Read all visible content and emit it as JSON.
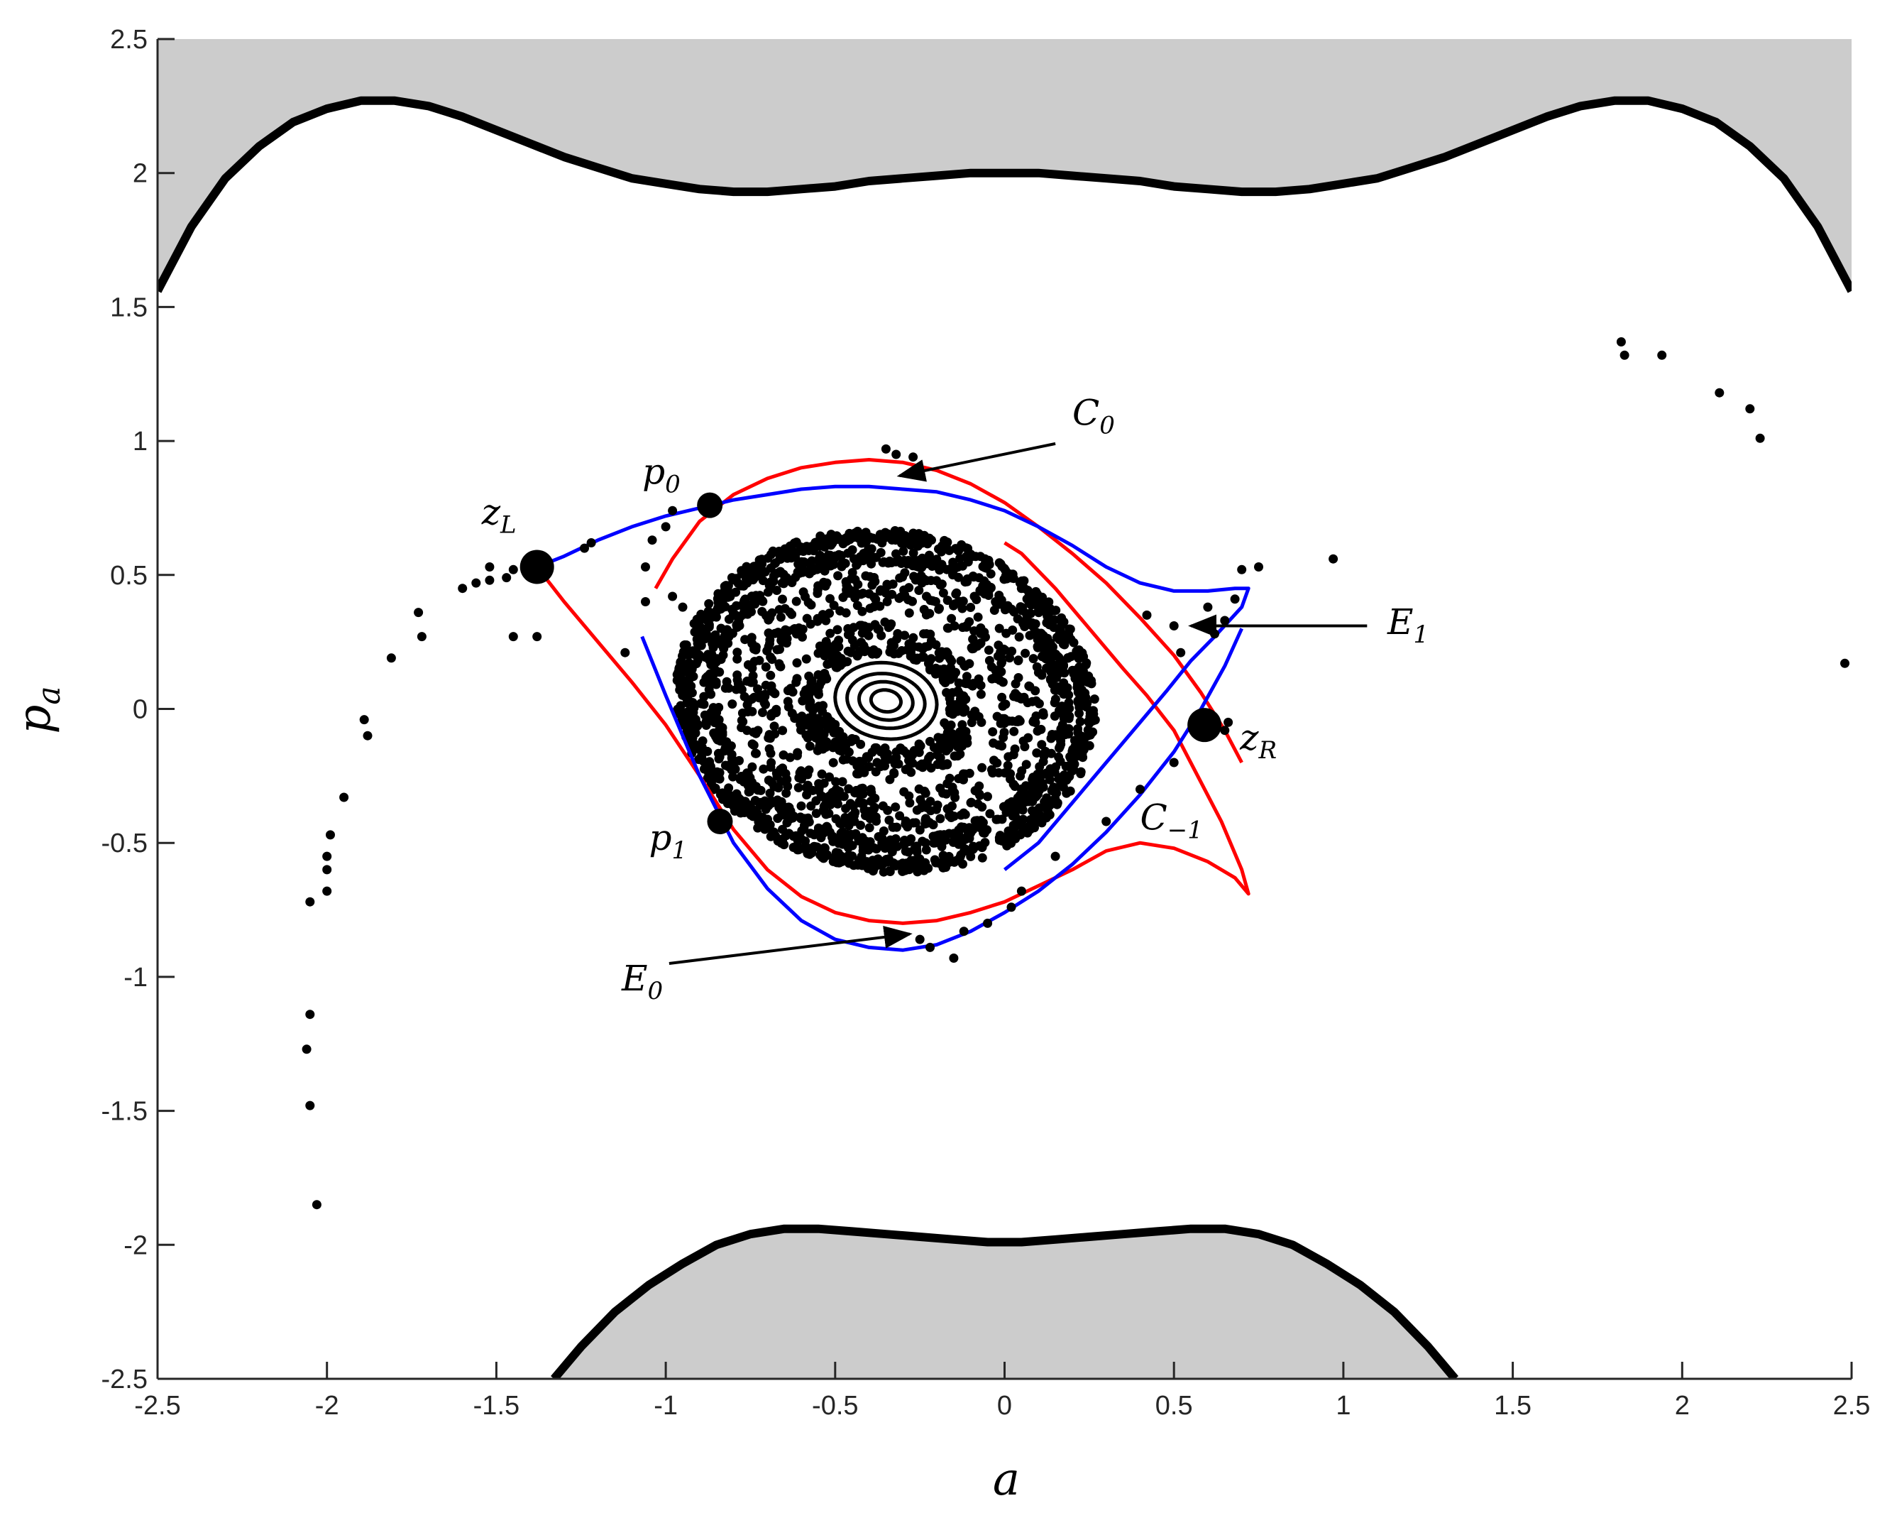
{
  "chart_data": {
    "type": "scatter",
    "xlabel": "a",
    "ylabel": "p",
    "ylabel_sub": "a",
    "xlim": [
      -2.5,
      2.5
    ],
    "ylim": [
      -2.5,
      2.5
    ],
    "xticks": [
      -2.5,
      -2,
      -1.5,
      -1,
      -0.5,
      0,
      0.5,
      1,
      1.5,
      2,
      2.5
    ],
    "yticks": [
      -2.5,
      -2,
      -1.5,
      -1,
      -0.5,
      0,
      0.5,
      1,
      1.5,
      2,
      2.5
    ],
    "xtick_labels": [
      "-2.5",
      "-2",
      "-1.5",
      "-1",
      "-0.5",
      "0",
      "0.5",
      "1",
      "1.5",
      "2",
      "2.5"
    ],
    "ytick_labels": [
      "-2.5",
      "-2",
      "-1.5",
      "-1",
      "-0.5",
      "0",
      "0.5",
      "1",
      "1.5",
      "2",
      "2.5"
    ],
    "grid": false,
    "colors": {
      "forbidden_fill": "#cccccc",
      "boundary": "#000000",
      "red_curve": "#ff0000",
      "blue_curve": "#0000ff",
      "points": "#000000"
    },
    "boundary_top": [
      [
        -2.5,
        1.56
      ],
      [
        -2.4,
        1.8
      ],
      [
        -2.3,
        1.98
      ],
      [
        -2.2,
        2.1
      ],
      [
        -2.1,
        2.19
      ],
      [
        -2.0,
        2.24
      ],
      [
        -1.9,
        2.27
      ],
      [
        -1.8,
        2.27
      ],
      [
        -1.7,
        2.25
      ],
      [
        -1.6,
        2.21
      ],
      [
        -1.5,
        2.16
      ],
      [
        -1.4,
        2.11
      ],
      [
        -1.3,
        2.06
      ],
      [
        -1.2,
        2.02
      ],
      [
        -1.1,
        1.98
      ],
      [
        -1.0,
        1.96
      ],
      [
        -0.9,
        1.94
      ],
      [
        -0.8,
        1.93
      ],
      [
        -0.7,
        1.93
      ],
      [
        -0.6,
        1.94
      ],
      [
        -0.5,
        1.95
      ],
      [
        -0.4,
        1.97
      ],
      [
        -0.3,
        1.98
      ],
      [
        -0.2,
        1.99
      ],
      [
        -0.1,
        2.0
      ],
      [
        0.0,
        2.0
      ],
      [
        0.1,
        2.0
      ],
      [
        0.2,
        1.99
      ],
      [
        0.3,
        1.98
      ],
      [
        0.4,
        1.97
      ],
      [
        0.5,
        1.95
      ],
      [
        0.6,
        1.94
      ],
      [
        0.7,
        1.93
      ],
      [
        0.8,
        1.93
      ],
      [
        0.9,
        1.94
      ],
      [
        1.0,
        1.96
      ],
      [
        1.1,
        1.98
      ],
      [
        1.2,
        2.02
      ],
      [
        1.3,
        2.06
      ],
      [
        1.4,
        2.11
      ],
      [
        1.5,
        2.16
      ],
      [
        1.6,
        2.21
      ],
      [
        1.7,
        2.25
      ],
      [
        1.8,
        2.27
      ],
      [
        1.9,
        2.27
      ],
      [
        2.0,
        2.24
      ],
      [
        2.1,
        2.19
      ],
      [
        2.2,
        2.1
      ],
      [
        2.3,
        1.98
      ],
      [
        2.4,
        1.8
      ],
      [
        2.5,
        1.56
      ]
    ],
    "boundary_bottom": [
      [
        -1.33,
        -2.5
      ],
      [
        -1.25,
        -2.38
      ],
      [
        -1.15,
        -2.25
      ],
      [
        -1.05,
        -2.15
      ],
      [
        -0.95,
        -2.07
      ],
      [
        -0.85,
        -2.0
      ],
      [
        -0.75,
        -1.96
      ],
      [
        -0.65,
        -1.94
      ],
      [
        -0.55,
        -1.94
      ],
      [
        -0.45,
        -1.95
      ],
      [
        -0.35,
        -1.96
      ],
      [
        -0.25,
        -1.97
      ],
      [
        -0.15,
        -1.98
      ],
      [
        -0.05,
        -1.99
      ],
      [
        0.05,
        -1.99
      ],
      [
        0.15,
        -1.98
      ],
      [
        0.25,
        -1.97
      ],
      [
        0.35,
        -1.96
      ],
      [
        0.45,
        -1.95
      ],
      [
        0.55,
        -1.94
      ],
      [
        0.65,
        -1.94
      ],
      [
        0.75,
        -1.96
      ],
      [
        0.85,
        -2.0
      ],
      [
        0.95,
        -2.07
      ],
      [
        1.05,
        -2.15
      ],
      [
        1.15,
        -2.25
      ],
      [
        1.25,
        -2.38
      ],
      [
        1.33,
        -2.5
      ]
    ],
    "red_curves": [
      [
        [
          -1.38,
          0.53
        ],
        [
          -1.3,
          0.4
        ],
        [
          -1.2,
          0.25
        ],
        [
          -1.1,
          0.1
        ],
        [
          -1.0,
          -0.06
        ],
        [
          -0.9,
          -0.25
        ],
        [
          -0.8,
          -0.45
        ],
        [
          -0.7,
          -0.6
        ],
        [
          -0.6,
          -0.7
        ],
        [
          -0.5,
          -0.76
        ],
        [
          -0.4,
          -0.79
        ],
        [
          -0.3,
          -0.8
        ],
        [
          -0.2,
          -0.79
        ],
        [
          -0.1,
          -0.76
        ],
        [
          0.0,
          -0.72
        ],
        [
          0.1,
          -0.66
        ],
        [
          0.2,
          -0.6
        ],
        [
          0.3,
          -0.53
        ],
        [
          0.4,
          -0.5
        ],
        [
          0.5,
          -0.52
        ],
        [
          0.6,
          -0.57
        ],
        [
          0.68,
          -0.63
        ],
        [
          0.72,
          -0.69
        ],
        [
          0.7,
          -0.6
        ],
        [
          0.64,
          -0.42
        ],
        [
          0.57,
          -0.25
        ],
        [
          0.5,
          -0.08
        ],
        [
          0.42,
          0.05
        ],
        [
          0.35,
          0.15
        ],
        [
          0.25,
          0.3
        ],
        [
          0.15,
          0.45
        ],
        [
          0.05,
          0.58
        ],
        [
          0.0,
          0.62
        ]
      ],
      [
        [
          -1.03,
          0.45
        ],
        [
          -0.98,
          0.56
        ],
        [
          -0.9,
          0.7
        ],
        [
          -0.8,
          0.8
        ],
        [
          -0.7,
          0.86
        ],
        [
          -0.6,
          0.9
        ],
        [
          -0.5,
          0.92
        ],
        [
          -0.4,
          0.93
        ],
        [
          -0.3,
          0.92
        ],
        [
          -0.2,
          0.89
        ],
        [
          -0.1,
          0.84
        ],
        [
          0.0,
          0.77
        ],
        [
          0.1,
          0.68
        ],
        [
          0.2,
          0.58
        ],
        [
          0.3,
          0.47
        ],
        [
          0.4,
          0.34
        ],
        [
          0.5,
          0.2
        ],
        [
          0.58,
          0.06
        ],
        [
          0.65,
          -0.08
        ],
        [
          0.7,
          -0.2
        ]
      ]
    ],
    "blue_curves": [
      [
        [
          -1.38,
          0.53
        ],
        [
          -1.3,
          0.57
        ],
        [
          -1.2,
          0.63
        ],
        [
          -1.1,
          0.68
        ],
        [
          -1.0,
          0.72
        ],
        [
          -0.9,
          0.75
        ],
        [
          -0.8,
          0.78
        ],
        [
          -0.7,
          0.8
        ],
        [
          -0.6,
          0.82
        ],
        [
          -0.5,
          0.83
        ],
        [
          -0.4,
          0.83
        ],
        [
          -0.3,
          0.82
        ],
        [
          -0.2,
          0.81
        ],
        [
          -0.1,
          0.78
        ],
        [
          0.0,
          0.74
        ],
        [
          0.1,
          0.68
        ],
        [
          0.2,
          0.61
        ],
        [
          0.3,
          0.53
        ],
        [
          0.4,
          0.47
        ],
        [
          0.5,
          0.44
        ],
        [
          0.6,
          0.44
        ],
        [
          0.68,
          0.45
        ],
        [
          0.72,
          0.45
        ],
        [
          0.7,
          0.38
        ],
        [
          0.62,
          0.27
        ],
        [
          0.55,
          0.18
        ],
        [
          0.48,
          0.07
        ],
        [
          0.4,
          -0.05
        ],
        [
          0.3,
          -0.2
        ],
        [
          0.2,
          -0.35
        ],
        [
          0.1,
          -0.5
        ],
        [
          0.0,
          -0.6
        ]
      ],
      [
        [
          -1.07,
          0.27
        ],
        [
          -1.0,
          0.05
        ],
        [
          -0.9,
          -0.25
        ],
        [
          -0.8,
          -0.5
        ],
        [
          -0.7,
          -0.67
        ],
        [
          -0.6,
          -0.79
        ],
        [
          -0.5,
          -0.86
        ],
        [
          -0.4,
          -0.89
        ],
        [
          -0.3,
          -0.9
        ],
        [
          -0.2,
          -0.88
        ],
        [
          -0.1,
          -0.83
        ],
        [
          0.0,
          -0.76
        ],
        [
          0.1,
          -0.68
        ],
        [
          0.2,
          -0.58
        ],
        [
          0.3,
          -0.46
        ],
        [
          0.4,
          -0.32
        ],
        [
          0.5,
          -0.16
        ],
        [
          0.58,
          0.0
        ],
        [
          0.65,
          0.16
        ],
        [
          0.7,
          0.3
        ]
      ]
    ],
    "special_points": [
      {
        "label": "z",
        "sub": "L",
        "x": -1.38,
        "y": 0.53,
        "size": "large"
      },
      {
        "label": "p",
        "sub": "0",
        "x": -0.87,
        "y": 0.76,
        "size": "medium"
      },
      {
        "label": "p",
        "sub": "1",
        "x": -0.84,
        "y": -0.42,
        "size": "medium"
      },
      {
        "label": "z",
        "sub": "R",
        "x": 0.59,
        "y": -0.06,
        "size": "large"
      }
    ],
    "annotations": [
      {
        "label": "C",
        "sub": "0",
        "text_x": 0.2,
        "text_y": 1.06,
        "arrow_from": [
          0.15,
          0.99
        ],
        "arrow_to": [
          -0.31,
          0.87
        ]
      },
      {
        "label": "E",
        "sub": "1",
        "text_x": 1.13,
        "text_y": 0.28,
        "arrow_from": [
          1.07,
          0.31
        ],
        "arrow_to": [
          0.55,
          0.31
        ]
      },
      {
        "label": "E",
        "sub": "0",
        "text_x": -1.13,
        "text_y": -1.05,
        "arrow_from": [
          -0.99,
          -0.95
        ],
        "arrow_to": [
          -0.28,
          -0.84
        ]
      },
      {
        "label": "C",
        "sub": "−1",
        "text_x": 0.4,
        "text_y": -0.45,
        "arrow_from": null,
        "arrow_to": null
      }
    ],
    "island_center": [
      -0.35,
      0.03
    ],
    "island_rings": [
      [
        0.05,
        0.04
      ],
      [
        0.09,
        0.07
      ],
      [
        0.13,
        0.1
      ],
      [
        0.17,
        0.14
      ]
    ],
    "island_annuli": [
      [
        0.21,
        0.17,
        0.33,
        0.29
      ],
      [
        0.37,
        0.33,
        0.54,
        0.48
      ],
      [
        0.56,
        0.5,
        0.62,
        0.56
      ],
      [
        0.64,
        0.58,
        0.7,
        0.63
      ]
    ],
    "chaotic_points": [
      [
        -2.05,
        -0.72
      ],
      [
        -2.0,
        -0.68
      ],
      [
        -2.0,
        -0.6
      ],
      [
        -2.0,
        -0.55
      ],
      [
        -1.99,
        -0.47
      ],
      [
        -1.95,
        -0.33
      ],
      [
        -1.88,
        -0.1
      ],
      [
        -1.89,
        -0.04
      ],
      [
        -1.81,
        0.19
      ],
      [
        -1.72,
        0.27
      ],
      [
        -1.73,
        0.36
      ],
      [
        -1.6,
        0.45
      ],
      [
        -1.56,
        0.47
      ],
      [
        -1.52,
        0.48
      ],
      [
        -1.52,
        0.53
      ],
      [
        -1.47,
        0.49
      ],
      [
        -1.45,
        0.52
      ],
      [
        -1.45,
        0.27
      ],
      [
        -1.38,
        0.27
      ],
      [
        -1.24,
        0.6
      ],
      [
        -1.22,
        0.62
      ],
      [
        -1.12,
        0.21
      ],
      [
        -1.06,
        0.53
      ],
      [
        -1.04,
        0.63
      ],
      [
        -1.0,
        0.68
      ],
      [
        -0.98,
        0.74
      ],
      [
        -1.06,
        0.4
      ],
      [
        -0.98,
        0.42
      ],
      [
        -0.95,
        0.38
      ],
      [
        -0.27,
        0.94
      ],
      [
        -0.32,
        0.95
      ],
      [
        -0.35,
        0.97
      ],
      [
        -0.22,
        -0.89
      ],
      [
        -0.25,
        -0.86
      ],
      [
        -0.12,
        -0.83
      ],
      [
        -0.05,
        -0.8
      ],
      [
        0.02,
        -0.74
      ],
      [
        0.05,
        -0.68
      ],
      [
        0.15,
        -0.55
      ],
      [
        0.3,
        -0.42
      ],
      [
        0.4,
        -0.3
      ],
      [
        0.5,
        -0.2
      ],
      [
        0.42,
        0.35
      ],
      [
        0.5,
        0.31
      ],
      [
        0.52,
        0.21
      ],
      [
        0.6,
        0.38
      ],
      [
        0.62,
        0.28
      ],
      [
        0.65,
        0.33
      ],
      [
        0.68,
        0.41
      ],
      [
        0.7,
        0.52
      ],
      [
        0.75,
        0.53
      ],
      [
        0.97,
        0.56
      ],
      [
        -0.15,
        -0.93
      ],
      [
        0.58,
        -0.03
      ],
      [
        0.66,
        -0.05
      ],
      [
        0.65,
        -0.08
      ],
      [
        1.82,
        1.37
      ],
      [
        1.83,
        1.32
      ],
      [
        1.94,
        1.32
      ],
      [
        2.11,
        1.18
      ],
      [
        2.2,
        1.12
      ],
      [
        2.23,
        1.01
      ],
      [
        2.48,
        0.17
      ],
      [
        -2.05,
        -1.14
      ],
      [
        -2.06,
        -1.27
      ],
      [
        -2.05,
        -1.48
      ],
      [
        -2.03,
        -1.85
      ]
    ],
    "cloud_seed": 7
  }
}
